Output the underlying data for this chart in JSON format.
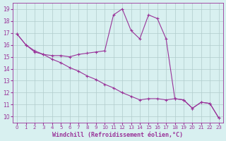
{
  "line1_x": [
    0,
    1,
    2,
    3,
    4,
    5,
    6,
    7,
    8,
    9,
    10,
    11,
    12,
    13,
    14,
    15,
    16,
    17,
    18,
    19,
    20,
    21,
    22,
    23
  ],
  "line1_y": [
    16.9,
    16.0,
    15.4,
    15.2,
    15.1,
    15.1,
    15.0,
    15.2,
    15.3,
    15.4,
    15.5,
    18.5,
    19.0,
    17.2,
    16.5,
    18.5,
    18.2,
    16.5,
    11.5,
    11.4,
    10.7,
    11.2,
    11.1,
    9.9
  ],
  "line2_x": [
    0,
    1,
    2,
    3,
    4,
    5,
    6,
    7,
    8,
    9,
    10,
    11,
    12,
    13,
    14,
    15,
    16,
    17,
    18,
    19,
    20,
    21,
    22,
    23
  ],
  "line2_y": [
    16.9,
    16.0,
    15.5,
    15.2,
    14.8,
    14.5,
    14.1,
    13.8,
    13.4,
    13.1,
    12.7,
    12.4,
    12.0,
    11.7,
    11.4,
    11.5,
    11.5,
    11.4,
    11.5,
    11.4,
    10.7,
    11.2,
    11.1,
    9.9
  ],
  "line_color": "#993399",
  "bg_color": "#d8f0f0",
  "grid_color": "#b0cccc",
  "ylim": [
    9.5,
    19.5
  ],
  "yticks": [
    10,
    11,
    12,
    13,
    14,
    15,
    16,
    17,
    18,
    19
  ],
  "xticks": [
    0,
    1,
    2,
    3,
    4,
    5,
    6,
    7,
    8,
    9,
    10,
    11,
    12,
    13,
    14,
    15,
    16,
    17,
    18,
    19,
    20,
    21,
    22,
    23
  ],
  "xlabel": "Windchill (Refroidissement éolien,°C)",
  "label_color": "#993399"
}
